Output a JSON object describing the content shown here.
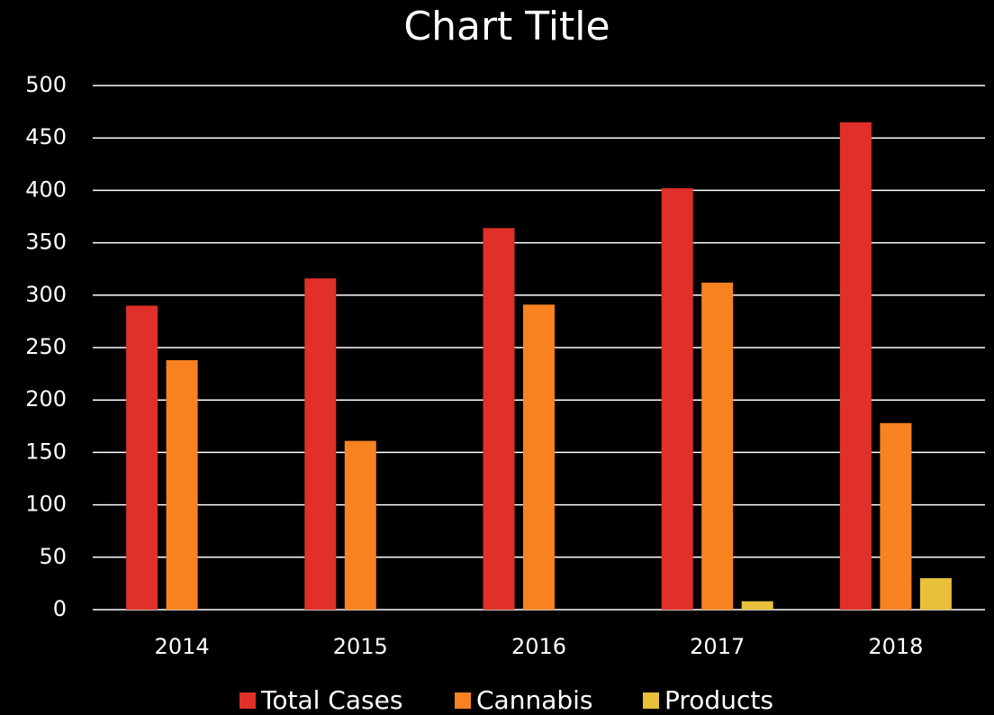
{
  "chart_data": {
    "type": "bar",
    "title": "Chart Title",
    "categories": [
      "2014",
      "2015",
      "2016",
      "2017",
      "2018"
    ],
    "series": [
      {
        "name": "Total Cases",
        "color": "#e03029",
        "values": [
          290,
          316,
          364,
          402,
          465
        ]
      },
      {
        "name": "Cannabis",
        "color": "#f98220",
        "values": [
          238,
          161,
          291,
          312,
          178
        ]
      },
      {
        "name": "Products",
        "color": "#e8c03a",
        "values": [
          0,
          0,
          0,
          8,
          30
        ]
      }
    ],
    "ylim": [
      0,
      500
    ],
    "yticks": [
      0,
      50,
      100,
      150,
      200,
      250,
      300,
      350,
      400,
      450,
      500
    ],
    "grid": true,
    "legend": "bottom"
  }
}
